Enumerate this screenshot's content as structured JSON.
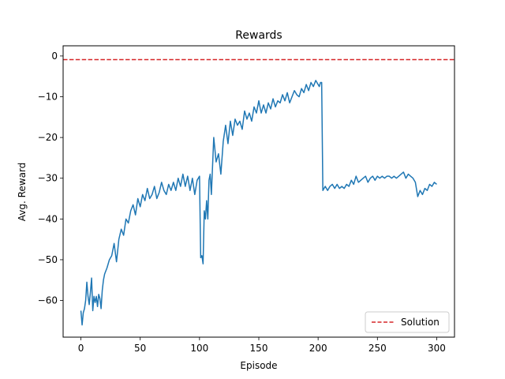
{
  "chart_data": {
    "type": "line",
    "title": "Rewards",
    "xlabel": "Episode",
    "ylabel": "Avg. Reward",
    "xlim": [
      -15,
      315
    ],
    "ylim": [
      -69,
      2.5
    ],
    "xticks": [
      0,
      50,
      100,
      150,
      200,
      250,
      300
    ],
    "yticks": [
      0,
      -10,
      -20,
      -30,
      -40,
      -50,
      -60
    ],
    "grid": false,
    "legend_position": "lower-right",
    "colors": {
      "series": "#1f77b4",
      "solution": "#d62728"
    },
    "series": [
      {
        "x": [
          0,
          1,
          2,
          3,
          4,
          5,
          6,
          7,
          8,
          9,
          10,
          11,
          12,
          13,
          14,
          15,
          16,
          17,
          18,
          19,
          20,
          22,
          24,
          26,
          28,
          30,
          32,
          34,
          36,
          38,
          40,
          42,
          44,
          46,
          48,
          50,
          52,
          54,
          56,
          58,
          60,
          62,
          64,
          66,
          68,
          70,
          72,
          74,
          76,
          78,
          80,
          82,
          84,
          86,
          88,
          90,
          92,
          94,
          96,
          98,
          100,
          101,
          102,
          103,
          104,
          105,
          106,
          107,
          108,
          109,
          110,
          112,
          114,
          116,
          118,
          120,
          122,
          124,
          126,
          128,
          130,
          132,
          134,
          136,
          138,
          140,
          142,
          144,
          146,
          148,
          150,
          152,
          154,
          156,
          158,
          160,
          162,
          164,
          166,
          168,
          170,
          172,
          174,
          176,
          178,
          180,
          182,
          184,
          186,
          188,
          190,
          192,
          194,
          196,
          198,
          200,
          201,
          202,
          203,
          204,
          205,
          206,
          208,
          210,
          212,
          214,
          216,
          218,
          220,
          222,
          224,
          226,
          228,
          230,
          232,
          234,
          236,
          238,
          240,
          242,
          244,
          246,
          248,
          250,
          252,
          254,
          256,
          258,
          260,
          262,
          264,
          266,
          268,
          270,
          272,
          274,
          276,
          278,
          280,
          282,
          284,
          286,
          288,
          290,
          292,
          294,
          296,
          298,
          300
        ],
        "y": [
          -62.5,
          -66,
          -63,
          -62,
          -60,
          -55.5,
          -59,
          -61,
          -58,
          -54.5,
          -62.5,
          -59,
          -60.5,
          -59,
          -61.5,
          -58.5,
          -59.5,
          -62,
          -57.5,
          -55,
          -53.5,
          -52,
          -50,
          -49,
          -46,
          -50.5,
          -45,
          -42.5,
          -44,
          -40,
          -41,
          -38,
          -36.5,
          -39,
          -35,
          -37,
          -34,
          -35.5,
          -32.5,
          -35,
          -34,
          -32,
          -35,
          -33.5,
          -31,
          -33,
          -34,
          -31.5,
          -33,
          -31,
          -33,
          -30,
          -32,
          -29,
          -32,
          -29.5,
          -33,
          -30,
          -34,
          -30.5,
          -29.5,
          -49.5,
          -49,
          -51,
          -38,
          -40,
          -35.5,
          -40,
          -30.5,
          -29,
          -34,
          -20,
          -26,
          -24,
          -29,
          -21,
          -17,
          -21.5,
          -16,
          -19.5,
          -15.5,
          -17,
          -16,
          -18,
          -13.5,
          -15.5,
          -14,
          -16,
          -12.5,
          -14,
          -11,
          -14,
          -12,
          -14,
          -11.5,
          -13,
          -10.5,
          -12.5,
          -11,
          -11.5,
          -9.5,
          -11,
          -9,
          -11.5,
          -10,
          -8.5,
          -9.5,
          -10,
          -8,
          -9,
          -7,
          -8.5,
          -6.5,
          -7.5,
          -6,
          -7,
          -7.5,
          -6.5,
          -6.5,
          -33,
          -32.5,
          -32,
          -33,
          -32,
          -31.5,
          -32.5,
          -31.5,
          -32.5,
          -32,
          -32.5,
          -31.5,
          -32,
          -30.5,
          -31.5,
          -29.5,
          -31,
          -30.5,
          -30,
          -29.5,
          -31,
          -30,
          -29.5,
          -30.5,
          -29.5,
          -30,
          -29.5,
          -30,
          -29.5,
          -29.5,
          -30,
          -29.5,
          -30,
          -29.5,
          -29,
          -28.5,
          -30,
          -29,
          -29.5,
          -30,
          -31,
          -34.5,
          -33,
          -34,
          -32.5,
          -33,
          -31.5,
          -32,
          -31,
          -31.5
        ]
      }
    ],
    "hlines": [
      {
        "name": "Solution",
        "y": -0.9,
        "style": "dashed"
      }
    ]
  }
}
